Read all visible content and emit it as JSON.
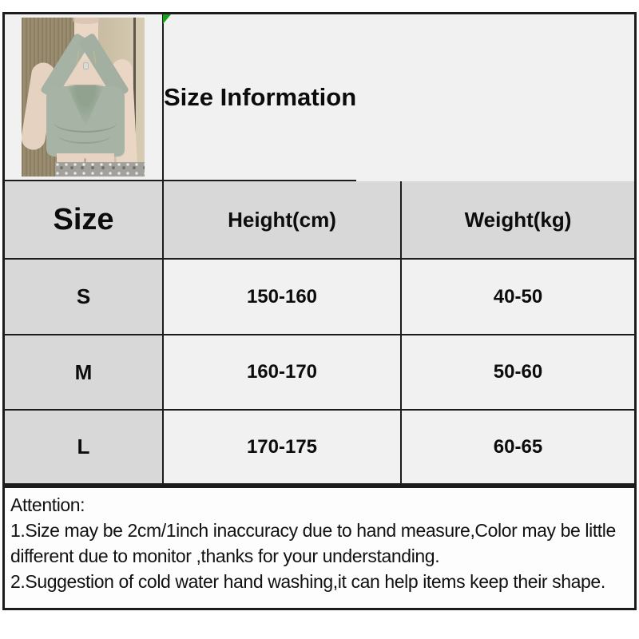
{
  "title": "Size Information",
  "size_table": {
    "headers": [
      "Size",
      "Height(cm)",
      "Weight(kg)"
    ],
    "rows": [
      {
        "size": "S",
        "height": "150-160",
        "weight": "40-50"
      },
      {
        "size": "M",
        "height": "160-170",
        "weight": "50-60"
      },
      {
        "size": "L",
        "height": "170-175",
        "weight": "60-65"
      }
    ]
  },
  "attention": {
    "heading": "Attention:",
    "line1": "1.Size may be 2cm/1inch inaccuracy due to hand measure,Color may be little",
    "line2": "different due to monitor ,thanks for your understanding.",
    "line3": "2.Suggestion of cold water hand washing,it can help items keep their shape."
  },
  "photo": {
    "description": "model wearing sage green halter cowl-neck crop top and silver sequin skirt"
  },
  "colors": {
    "header_bg": "#d8d8d8",
    "cell_bg": "#f1f1f1",
    "border": "#1c1c1c",
    "marker_green": "#18a018",
    "top_sage": "#a7b3a5"
  },
  "chart_data": {
    "type": "table",
    "title": "Size Information",
    "columns": [
      "Size",
      "Height(cm)",
      "Weight(kg)"
    ],
    "rows": [
      [
        "S",
        "150-160",
        "40-50"
      ],
      [
        "M",
        "160-170",
        "50-60"
      ],
      [
        "L",
        "170-175",
        "60-65"
      ]
    ],
    "notes": [
      "Attention:",
      "1.Size may be 2cm/1inch inaccuracy due to hand measure,Color may be little different due to monitor ,thanks for your understanding.",
      "2.Suggestion of cold water hand washing,it can help items keep their shape."
    ]
  }
}
